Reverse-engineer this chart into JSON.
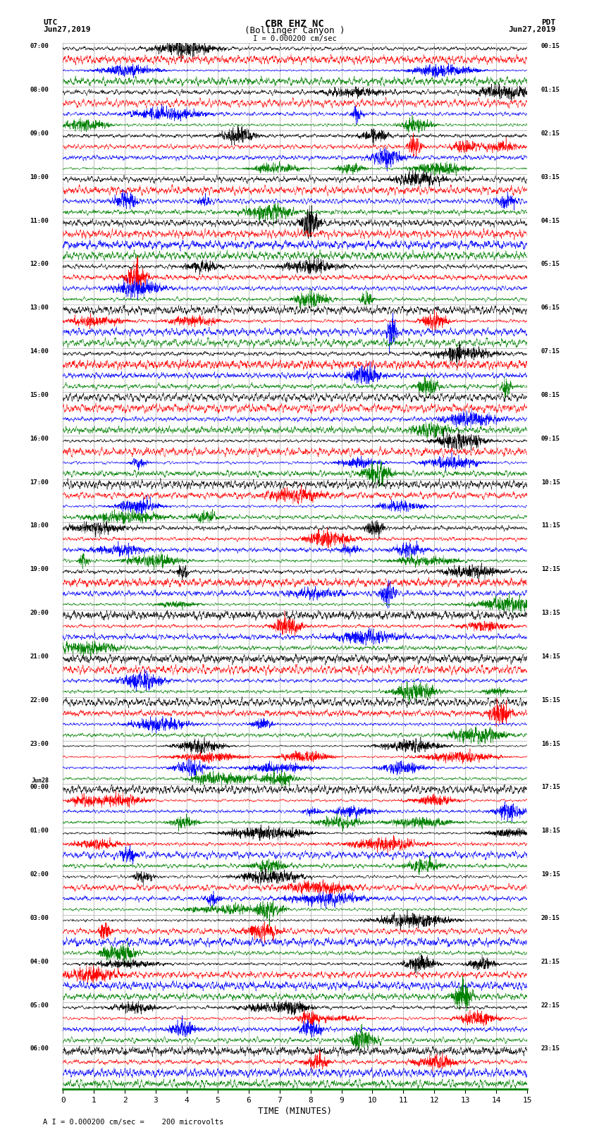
{
  "title_line1": "CBR EHZ NC",
  "title_line2": "(Bollinger Canyon )",
  "scale_label": "I = 0.000200 cm/sec",
  "bottom_label": "A I = 0.000200 cm/sec =    200 microvolts",
  "xlabel": "TIME (MINUTES)",
  "utc_label": "UTC",
  "utc_date": "Jun27,2019",
  "pdt_label": "PDT",
  "pdt_date": "Jun27,2019",
  "left_times": [
    "07:00",
    "",
    "",
    "",
    "08:00",
    "",
    "",
    "",
    "09:00",
    "",
    "",
    "",
    "10:00",
    "",
    "",
    "",
    "11:00",
    "",
    "",
    "",
    "12:00",
    "",
    "",
    "",
    "13:00",
    "",
    "",
    "",
    "14:00",
    "",
    "",
    "",
    "15:00",
    "",
    "",
    "",
    "16:00",
    "",
    "",
    "",
    "17:00",
    "",
    "",
    "",
    "18:00",
    "",
    "",
    "",
    "19:00",
    "",
    "",
    "",
    "20:00",
    "",
    "",
    "",
    "21:00",
    "",
    "",
    "",
    "22:00",
    "",
    "",
    "",
    "23:00",
    "",
    "",
    "",
    "Jun28\n00:00",
    "",
    "",
    "",
    "01:00",
    "",
    "",
    "",
    "02:00",
    "",
    "",
    "",
    "03:00",
    "",
    "",
    "",
    "04:00",
    "",
    "",
    "",
    "05:00",
    "",
    "",
    "",
    "06:00",
    "",
    "",
    ""
  ],
  "right_times": [
    "00:15",
    "",
    "",
    "",
    "01:15",
    "",
    "",
    "",
    "02:15",
    "",
    "",
    "",
    "03:15",
    "",
    "",
    "",
    "04:15",
    "",
    "",
    "",
    "05:15",
    "",
    "",
    "",
    "06:15",
    "",
    "",
    "",
    "07:15",
    "",
    "",
    "",
    "08:15",
    "",
    "",
    "",
    "09:15",
    "",
    "",
    "",
    "10:15",
    "",
    "",
    "",
    "11:15",
    "",
    "",
    "",
    "12:15",
    "",
    "",
    "",
    "13:15",
    "",
    "",
    "",
    "14:15",
    "",
    "",
    "",
    "15:15",
    "",
    "",
    "",
    "16:15",
    "",
    "",
    "",
    "17:15",
    "",
    "",
    "",
    "18:15",
    "",
    "",
    "",
    "19:15",
    "",
    "",
    "",
    "20:15",
    "",
    "",
    "",
    "21:15",
    "",
    "",
    "",
    "22:15",
    "",
    "",
    "",
    "23:15",
    "",
    "",
    ""
  ],
  "n_rows": 96,
  "n_cols": 4,
  "colors": [
    "black",
    "red",
    "blue",
    "green"
  ],
  "bg_color": "white",
  "grid_color": "#999999",
  "x_ticks": [
    0,
    1,
    2,
    3,
    4,
    5,
    6,
    7,
    8,
    9,
    10,
    11,
    12,
    13,
    14,
    15
  ],
  "xlim": [
    0,
    15
  ]
}
